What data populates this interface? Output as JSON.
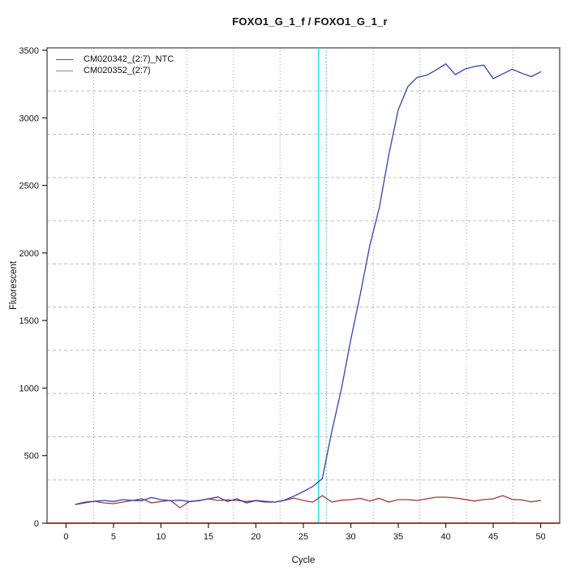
{
  "title": "FOXO1_G_1_f / FOXO1_G_1_r",
  "axes": {
    "x_label": "Cycle",
    "y_label": "Fluorescent"
  },
  "legend": {
    "items": [
      {
        "label": "CM020342_(2:7)_NTC",
        "color": "#9e3a38"
      },
      {
        "label": "CM020352_(2:7)",
        "color": "#7d82c4"
      }
    ]
  },
  "colors": {
    "ntc_line": "#9e3a38",
    "sample_line": "#3a3fac",
    "ct_line_solid": "#3ce6e6",
    "ct_line_dotted": "#5fe0e0",
    "baseline": "#9c2f28",
    "h_grid": "#bdbdbd",
    "v_grid": "#9c9c9c",
    "border": "#6b6b6b",
    "tick": "#222222"
  },
  "chart_data": {
    "type": "line",
    "title": "FOXO1_G_1_f / FOXO1_G_1_r",
    "xlabel": "Cycle",
    "ylabel": "Fluorescent",
    "xlim": [
      -2,
      52
    ],
    "ylim": [
      0,
      3518
    ],
    "x_ticks": [
      0,
      5,
      10,
      15,
      20,
      25,
      30,
      35,
      40,
      45,
      50
    ],
    "y_ticks": [
      0,
      500,
      1000,
      1500,
      2000,
      2500,
      3000,
      3500
    ],
    "grid": {
      "nx": 11,
      "ny": 11,
      "vertical_style": "dotted",
      "horizontal_style": "dashed"
    },
    "x": [
      1,
      2,
      3,
      4,
      5,
      6,
      7,
      8,
      9,
      10,
      11,
      12,
      13,
      14,
      15,
      16,
      17,
      18,
      19,
      20,
      21,
      22,
      23,
      24,
      25,
      26,
      27,
      28,
      29,
      30,
      31,
      32,
      33,
      34,
      35,
      36,
      37,
      38,
      39,
      40,
      41,
      42,
      43,
      44,
      45,
      46,
      47,
      48,
      49,
      50
    ],
    "series": [
      {
        "name": "CM020342_(2:7)_NTC",
        "color": "#9e3a38",
        "values": [
          138,
          150,
          162,
          150,
          144,
          156,
          168,
          180,
          150,
          160,
          168,
          114,
          160,
          168,
          180,
          168,
          172,
          168,
          160,
          168,
          162,
          156,
          168,
          186,
          168,
          156,
          204,
          156,
          170,
          174,
          184,
          164,
          184,
          156,
          174,
          174,
          168,
          180,
          192,
          192,
          186,
          176,
          164,
          174,
          180,
          204,
          176,
          172,
          158,
          168
        ]
      },
      {
        "name": "CM020352_(2:7)",
        "color": "#3a3fac",
        "values": [
          140,
          156,
          162,
          168,
          160,
          174,
          168,
          166,
          190,
          174,
          166,
          170,
          160,
          166,
          180,
          194,
          160,
          180,
          150,
          166,
          156,
          156,
          170,
          200,
          234,
          272,
          330,
          680,
          990,
          1360,
          1695,
          2055,
          2335,
          2725,
          3060,
          3230,
          3300,
          3315,
          3355,
          3400,
          3320,
          3360,
          3380,
          3390,
          3290,
          3325,
          3360,
          3330,
          3305,
          3340
        ]
      }
    ],
    "threshold_cycle_marker": {
      "solid_x": 26.6,
      "dotted_x": 27.4
    },
    "baseline_y": 0,
    "legend_position": "top-left",
    "grid_on": true
  }
}
